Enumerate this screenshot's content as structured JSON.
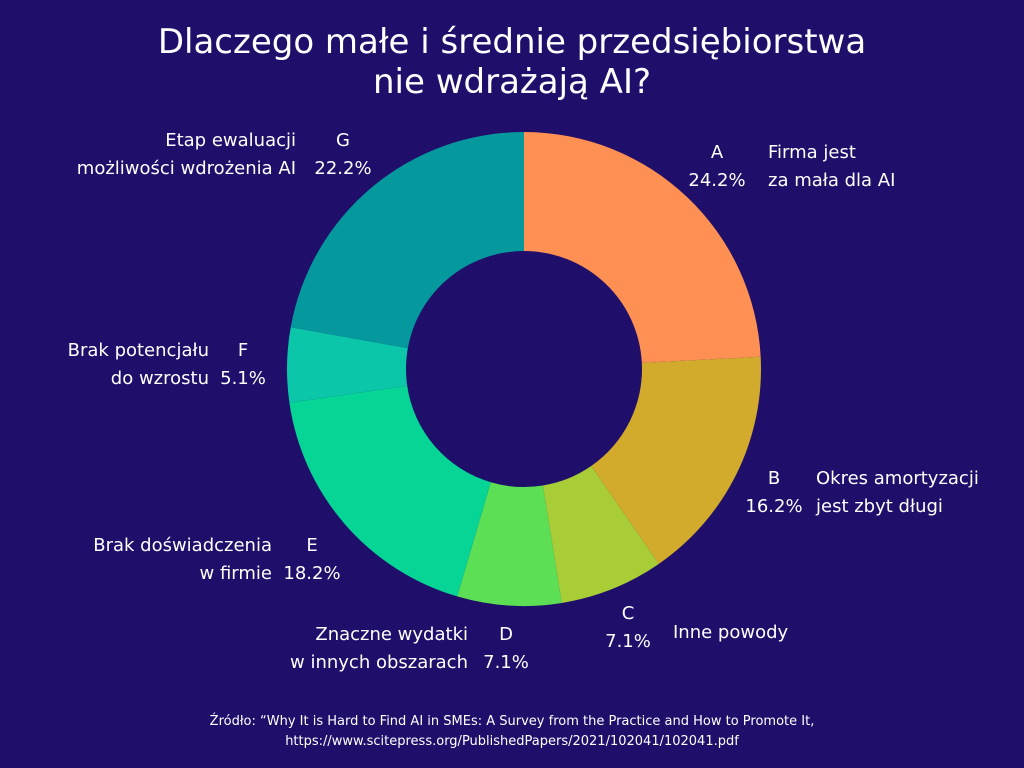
{
  "title": {
    "line1": "Dlaczego małe i średnie przedsiębiorstwa",
    "line2": "nie wdrażają AI?"
  },
  "chart_data": {
    "type": "pie",
    "donut": true,
    "slices": [
      {
        "letter": "A",
        "value": 24.2,
        "percent_label": "24.2%",
        "label_lines": [
          "Firma jest",
          "za mała dla AI"
        ],
        "color": "#fd9052"
      },
      {
        "letter": "B",
        "value": 16.2,
        "percent_label": "16.2%",
        "label_lines": [
          "Okres amortyzacji",
          "jest zbyt długi"
        ],
        "color": "#d2aa2c"
      },
      {
        "letter": "C",
        "value": 7.1,
        "percent_label": "7.1%",
        "label_lines": [
          "Inne powody"
        ],
        "color": "#a8cd37"
      },
      {
        "letter": "D",
        "value": 7.1,
        "percent_label": "7.1%",
        "label_lines": [
          "Znaczne wydatki",
          "w innych obszarach"
        ],
        "color": "#5ddf55"
      },
      {
        "letter": "E",
        "value": 18.2,
        "percent_label": "18.2%",
        "label_lines": [
          "Brak doświadczenia",
          "w firmie"
        ],
        "color": "#06d596"
      },
      {
        "letter": "F",
        "value": 5.1,
        "percent_label": "5.1%",
        "label_lines": [
          "Brak potencjału",
          "do wzrostu"
        ],
        "color": "#0cc6aa"
      },
      {
        "letter": "G",
        "value": 22.2,
        "percent_label": "22.2%",
        "label_lines": [
          "Etap ewaluacji",
          "możliwości wdrożenia AI"
        ],
        "color": "#05999e"
      }
    ]
  },
  "source": {
    "line1": "Źródło: “Why It is Hard to Find AI in SMEs: A Survey from the Practice and How to Promote It,",
    "line2": "https://www.scitepress.org/PublishedPapers/2021/102041/102041.pdf"
  },
  "colors": {
    "background": "#1f0f6b",
    "text": "#ffffff"
  }
}
